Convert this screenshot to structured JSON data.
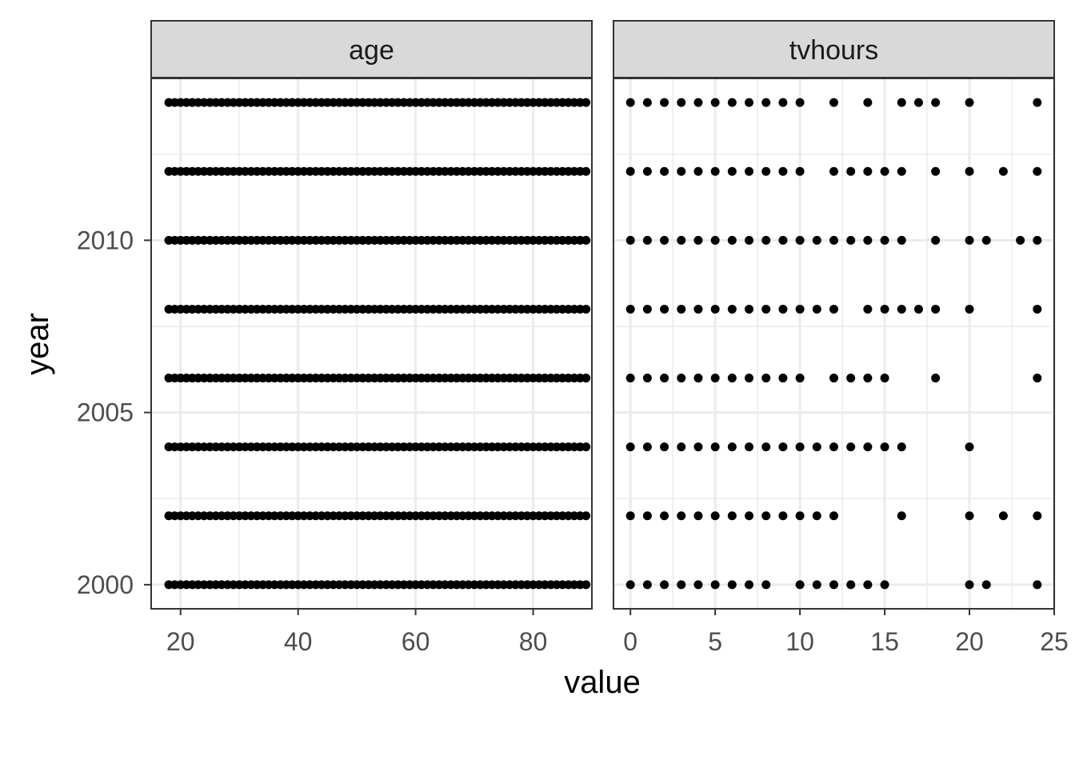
{
  "chart_data": {
    "type": "scatter",
    "xlabel": "value",
    "ylabel": "year",
    "facets": [
      {
        "name": "age",
        "xlim": [
          15,
          90
        ],
        "x_ticks": [
          "20",
          "40",
          "60",
          "80"
        ],
        "x_tick_values": [
          20,
          40,
          60,
          80
        ],
        "x_values": [
          18,
          19,
          20,
          21,
          22,
          23,
          24,
          25,
          26,
          27,
          28,
          29,
          30,
          31,
          32,
          33,
          34,
          35,
          36,
          37,
          38,
          39,
          40,
          41,
          42,
          43,
          44,
          45,
          46,
          47,
          48,
          49,
          50,
          51,
          52,
          53,
          54,
          55,
          56,
          57,
          58,
          59,
          60,
          61,
          62,
          63,
          64,
          65,
          66,
          67,
          68,
          69,
          70,
          71,
          72,
          73,
          74,
          75,
          76,
          77,
          78,
          79,
          80,
          81,
          82,
          83,
          84,
          85,
          86,
          87,
          88,
          89
        ],
        "years": [
          2000,
          2002,
          2004,
          2006,
          2008,
          2010,
          2012,
          2014
        ]
      },
      {
        "name": "tvhours",
        "xlim": [
          -1,
          25
        ],
        "x_ticks": [
          "0",
          "5",
          "10",
          "15",
          "20",
          "25"
        ],
        "x_tick_values": [
          0,
          5,
          10,
          15,
          20,
          25
        ],
        "series": [
          {
            "year": 2000,
            "x": [
              0,
              1,
              2,
              3,
              4,
              5,
              6,
              7,
              8,
              10,
              11,
              12,
              13,
              14,
              15,
              20,
              21,
              24
            ]
          },
          {
            "year": 2002,
            "x": [
              0,
              1,
              2,
              3,
              4,
              5,
              6,
              7,
              8,
              9,
              10,
              11,
              12,
              16,
              20,
              22,
              24
            ]
          },
          {
            "year": 2004,
            "x": [
              0,
              1,
              2,
              3,
              4,
              5,
              6,
              7,
              8,
              9,
              10,
              11,
              12,
              13,
              14,
              15,
              16,
              20
            ]
          },
          {
            "year": 2006,
            "x": [
              0,
              1,
              2,
              3,
              4,
              5,
              6,
              7,
              8,
              9,
              10,
              12,
              13,
              14,
              15,
              18,
              24
            ]
          },
          {
            "year": 2008,
            "x": [
              0,
              1,
              2,
              3,
              4,
              5,
              6,
              7,
              8,
              9,
              10,
              11,
              12,
              14,
              15,
              16,
              17,
              18,
              20,
              24
            ]
          },
          {
            "year": 2010,
            "x": [
              0,
              1,
              2,
              3,
              4,
              5,
              6,
              7,
              8,
              9,
              10,
              11,
              12,
              13,
              14,
              15,
              16,
              18,
              20,
              21,
              23,
              24
            ]
          },
          {
            "year": 2012,
            "x": [
              0,
              1,
              2,
              3,
              4,
              5,
              6,
              7,
              8,
              9,
              10,
              12,
              13,
              14,
              15,
              16,
              18,
              20,
              22,
              24
            ]
          },
          {
            "year": 2014,
            "x": [
              0,
              1,
              2,
              3,
              4,
              5,
              6,
              7,
              8,
              9,
              10,
              12,
              14,
              16,
              17,
              18,
              20,
              24
            ]
          }
        ]
      }
    ],
    "ylim": [
      1999.3,
      2014.7
    ],
    "y_ticks": [
      "2000",
      "2005",
      "2010"
    ],
    "y_tick_values": [
      2000,
      2005,
      2010
    ],
    "grid": true,
    "point_color": "#000000",
    "strip_fill": "#d9d9d9",
    "gridline_color": "#ebebeb"
  }
}
